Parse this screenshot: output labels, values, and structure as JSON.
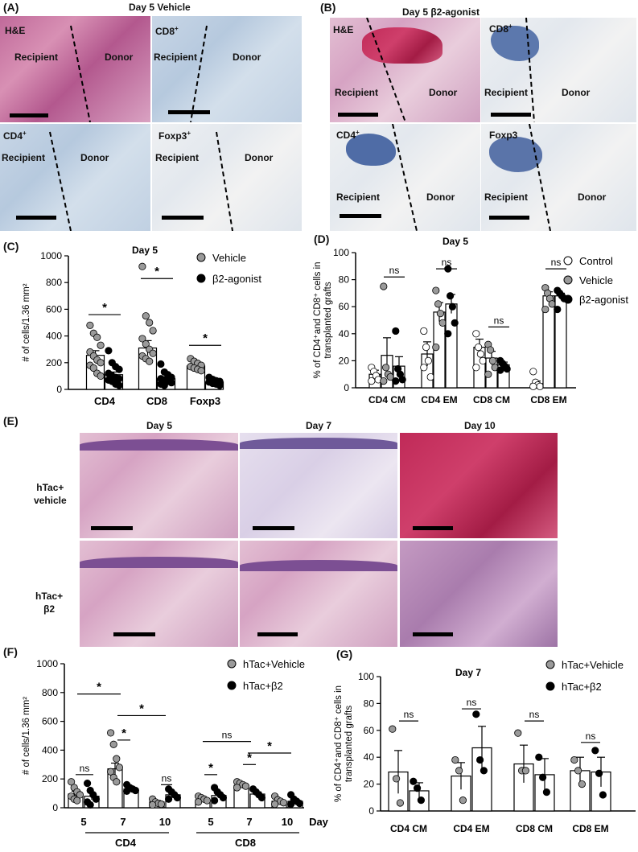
{
  "panels": {
    "A": {
      "label": "(A)",
      "title": "Day 5 Vehicle",
      "images": [
        {
          "stain": "H&E",
          "left": "Recipient",
          "right": "Donor"
        },
        {
          "stain": "CD8",
          "sup": "+",
          "left": "Recipient",
          "right": "Donor"
        },
        {
          "stain": "CD4",
          "sup": "+",
          "left": "Recipient",
          "right": "Donor"
        },
        {
          "stain": "Foxp3",
          "sup": "+",
          "left": "Recipient",
          "right": "Donor"
        }
      ]
    },
    "B": {
      "label": "(B)",
      "title": "Day 5 β2-agonist",
      "images": [
        {
          "stain": "H&E",
          "left": "Recipient",
          "right": "Donor"
        },
        {
          "stain": "CD8",
          "sup": "+",
          "left": "Recipient",
          "right": "Donor"
        },
        {
          "stain": "CD4",
          "sup": "+",
          "left": "Recipient",
          "right": "Donor"
        },
        {
          "stain": "Foxp3",
          "sup": "",
          "left": "Recipient",
          "right": "Donor"
        }
      ]
    },
    "C": {
      "label": "(C)"
    },
    "D": {
      "label": "(D)"
    },
    "E": {
      "label": "(E)",
      "columns": [
        "Day 5",
        "Day 7",
        "Day 10"
      ],
      "rows": [
        {
          "line1": "hTac+",
          "line2": "vehicle"
        },
        {
          "line1": "hTac+",
          "line2": "β2"
        }
      ]
    },
    "F": {
      "label": "(F)"
    },
    "G": {
      "label": "(G)"
    }
  },
  "colors": {
    "vehicle": "#9a9a9a",
    "agonist": "#000000",
    "control": "#ffffff"
  },
  "chart_data": [
    {
      "id": "C",
      "type": "bar",
      "title": "Day 5",
      "ylabel": "# of cells/1.36 mm²",
      "ylim": [
        0,
        1000
      ],
      "yticks": [
        0,
        200,
        400,
        600,
        800,
        1000
      ],
      "categories": [
        "CD4",
        "CD8",
        "Foxp3"
      ],
      "series": [
        {
          "name": "Vehicle",
          "values": [
            255,
            310,
            175
          ],
          "sem": [
            35,
            55,
            20
          ],
          "points": [
            [
              480,
              420,
              390,
              330,
              280,
              250,
              220,
              200,
              180,
              160,
              120,
              100
            ],
            [
              920,
              550,
              500,
              440,
              380,
              340,
              300,
              270,
              250,
              230,
              210
            ],
            [
              230,
              210,
              195,
              180,
              170,
              160,
              150,
              140
            ]
          ]
        },
        {
          "name": "β2-agonist",
          "values": [
            110,
            80,
            55
          ],
          "sem": [
            20,
            15,
            8
          ],
          "points": [
            [
              290,
              200,
              170,
              150,
              120,
              100,
              90,
              80,
              70,
              60,
              40,
              30
            ],
            [
              190,
              130,
              110,
              90,
              80,
              70,
              60,
              50,
              40,
              30
            ],
            [
              90,
              75,
              65,
              60,
              55,
              45,
              40,
              30
            ]
          ]
        }
      ],
      "significance": [
        "*",
        "*",
        "*"
      ],
      "legend": "top-right"
    },
    {
      "id": "D",
      "type": "bar",
      "title": "Day 5",
      "ylabel": "% of CD4⁺and CD8⁺ cells in transplanted grafts",
      "ylim": [
        0,
        100
      ],
      "yticks": [
        0,
        20,
        40,
        60,
        80,
        100
      ],
      "categories": [
        "CD4 CM",
        "CD4 EM",
        "CD8 CM",
        "CD8 EM"
      ],
      "series": [
        {
          "name": "Control",
          "values": [
            10,
            25,
            30,
            3
          ],
          "sem": [
            3,
            9,
            6,
            2
          ],
          "points": [
            [
              15,
              12,
              9,
              6,
              5
            ],
            [
              42,
              30,
              20,
              8,
              15
            ],
            [
              40,
              30,
              25,
              20,
              15
            ],
            [
              12,
              4,
              2,
              1,
              1
            ]
          ]
        },
        {
          "name": "Vehicle",
          "values": [
            24,
            56,
            22,
            68
          ],
          "sem": [
            13,
            7,
            5,
            3
          ],
          "points": [
            [
              75,
              15,
              10,
              8,
              5
            ],
            [
              72,
              62,
              55,
              48,
              30
            ],
            [
              32,
              28,
              20,
              15,
              10
            ],
            [
              74,
              70,
              66,
              62,
              58
            ]
          ]
        },
        {
          "name": "β2-agonist",
          "values": [
            16,
            62,
            17,
            68
          ],
          "sem": [
            7,
            7,
            2,
            2
          ],
          "points": [
            [
              42,
              14,
              10,
              6,
              5
            ],
            [
              88,
              68,
              60,
              48,
              40
            ],
            [
              20,
              18,
              16,
              14,
              13
            ],
            [
              72,
              70,
              68,
              66,
              58
            ]
          ]
        }
      ],
      "significance": [
        "ns",
        "ns",
        "ns",
        "ns"
      ],
      "legend": "top-right"
    },
    {
      "id": "F",
      "type": "bar",
      "ylabel": "# of cells/1.36 mm²",
      "ylim": [
        0,
        1000
      ],
      "yticks": [
        0,
        200,
        400,
        600,
        800,
        1000
      ],
      "x": [
        "5",
        "7",
        "10",
        "5",
        "7",
        "10"
      ],
      "xlabel_suffix": "Day",
      "groups": [
        "CD4",
        "CD8"
      ],
      "series": [
        {
          "name": "hTac+Vehicle",
          "values": [
            95,
            270,
            40,
            55,
            155,
            45
          ],
          "sem": [
            20,
            40,
            10,
            10,
            15,
            10
          ],
          "points": [
            [
              180,
              140,
              110,
              90,
              80,
              60,
              50
            ],
            [
              520,
              440,
              340,
              280,
              250,
              210,
              180
            ],
            [
              60,
              40,
              30,
              25,
              20
            ],
            [
              80,
              70,
              60,
              50,
              40
            ],
            [
              180,
              170,
              160,
              150,
              140
            ],
            [
              80,
              55,
              45,
              35,
              25
            ]
          ]
        },
        {
          "name": "hTac+β2",
          "values": [
            80,
            130,
            90,
            85,
            95,
            45
          ],
          "sem": [
            25,
            10,
            12,
            15,
            15,
            10
          ],
          "points": [
            [
              170,
              120,
              90,
              60,
              40,
              20
            ],
            [
              160,
              140,
              130,
              120,
              115
            ],
            [
              130,
              110,
              90,
              70,
              60
            ],
            [
              140,
              110,
              90,
              70,
              50
            ],
            [
              130,
              110,
              90,
              70
            ],
            [
              90,
              60,
              45,
              30,
              25
            ]
          ]
        }
      ],
      "significance": [
        "ns",
        "*",
        "*",
        "*",
        "ns",
        "*",
        "ns",
        "*",
        "*"
      ]
    },
    {
      "id": "G",
      "type": "bar",
      "title": "Day 7",
      "ylabel": "% of CD4⁺and CD8⁺ cells in transplanted grafts",
      "ylim": [
        0,
        100
      ],
      "yticks": [
        0,
        20,
        40,
        60,
        80,
        100
      ],
      "categories": [
        "CD4 CM",
        "CD4 EM",
        "CD8 CM",
        "CD8 EM"
      ],
      "series": [
        {
          "name": "hTac+Vehicle",
          "values": [
            29,
            26,
            35,
            30
          ],
          "sem": [
            16,
            10,
            14,
            10
          ],
          "points": [
            [
              61,
              24,
              6
            ],
            [
              38,
              30,
              8
            ],
            [
              58,
              30,
              30
            ],
            [
              38,
              30,
              20
            ]
          ]
        },
        {
          "name": "hTac+β2",
          "values": [
            15,
            47,
            27,
            29
          ],
          "sem": [
            6,
            16,
            12,
            11
          ],
          "points": [
            [
              22,
              17,
              8
            ],
            [
              72,
              38,
              30
            ],
            [
              40,
              25,
              14
            ],
            [
              45,
              28,
              12
            ]
          ]
        }
      ],
      "significance": [
        "ns",
        "ns",
        "ns",
        "ns"
      ],
      "legend": "top-right"
    }
  ]
}
